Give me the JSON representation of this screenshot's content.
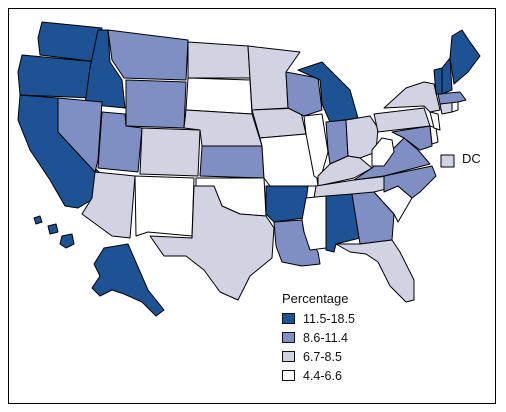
{
  "map": {
    "colors": {
      "high": "#1d5394",
      "mid": "#7f8fc3",
      "low": "#d2d3e2",
      "lowest": "#ffffff",
      "border": "#000000",
      "state_line": "#ffffff"
    },
    "dc": {
      "label": "DC",
      "category": "low"
    },
    "legend": {
      "title": "Percentage",
      "items": [
        {
          "label": "11.5-18.5",
          "category": "high"
        },
        {
          "label": "8.6-11.4",
          "category": "mid"
        },
        {
          "label": "6.7-8.5",
          "category": "low"
        },
        {
          "label": "4.4-6.6",
          "category": "lowest"
        }
      ]
    },
    "states": {
      "WA": "high",
      "OR": "high",
      "ID": "high",
      "CA": "high",
      "AK": "high",
      "HI": "high",
      "MI": "high",
      "AR": "high",
      "AL": "high",
      "VT": "high",
      "NH": "high",
      "ME": "high",
      "MT": "mid",
      "WY": "mid",
      "NV": "mid",
      "UT": "mid",
      "KS": "mid",
      "WI": "mid",
      "LA": "mid",
      "GA": "mid",
      "IN": "mid",
      "VA": "mid",
      "NC": "mid",
      "MA": "mid",
      "MD": "mid",
      "ND": "low",
      "MN": "low",
      "NE": "low",
      "IA": "low",
      "CO": "low",
      "AZ": "low",
      "TX": "low",
      "OK": "lowest",
      "OH": "low",
      "PA": "low",
      "NY": "low",
      "KY": "low",
      "TN": "low",
      "FL": "low",
      "SC": "lowest",
      "CT": "low",
      "RI": "lowest",
      "NJ": "lowest",
      "DE": "lowest",
      "SD": "lowest",
      "NM": "lowest",
      "MO": "lowest",
      "IL": "lowest",
      "MS": "lowest",
      "WV": "lowest"
    }
  }
}
